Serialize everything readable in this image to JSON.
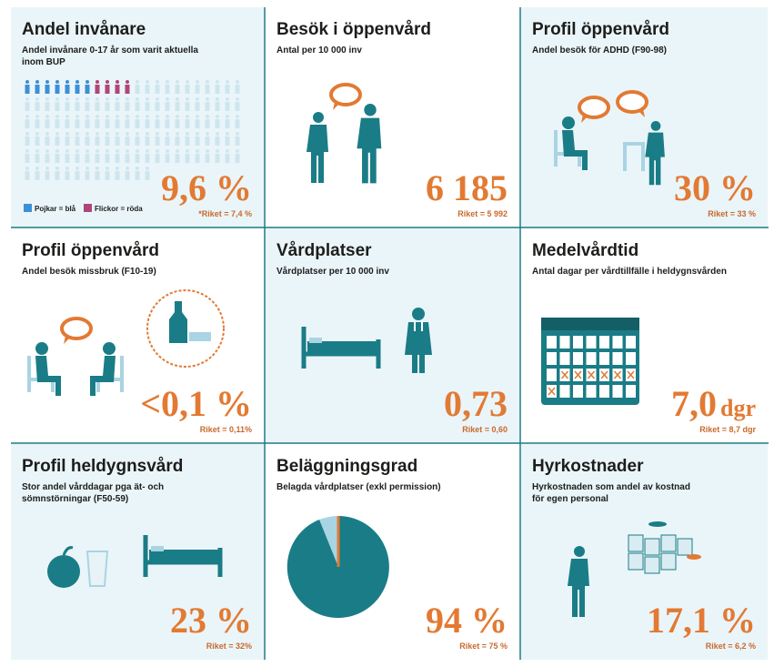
{
  "panels": [
    {
      "title": "Andel invånare",
      "subtitle": [
        "Andel invånare 0-17 år som varit aktuella",
        "inom BUP"
      ],
      "value": "9,6 %",
      "riket": "*Riket = 7,4 %",
      "legend": [
        "Pojkar = blå",
        "Flickor = röda"
      ]
    },
    {
      "title": "Besök i öppenvård",
      "subtitle": [
        "Antal per 10 000 inv"
      ],
      "value": "6 185",
      "riket": "Riket = 5 992"
    },
    {
      "title": "Profil öppenvård",
      "subtitle": [
        "Andel besök för ADHD (F90-98)"
      ],
      "value": "30 %",
      "riket": "Riket = 33 %"
    },
    {
      "title": "Profil öppenvård",
      "subtitle": [
        "Andel besök missbruk (F10-19)"
      ],
      "value": "<0,1 %",
      "riket": "Riket = 0,11%"
    },
    {
      "title": "Vårdplatser",
      "subtitle": [
        "Vårdplatser per 10 000 inv"
      ],
      "value": "0,73",
      "riket": "Riket = 0,60"
    },
    {
      "title": "Medelvårdtid",
      "subtitle": [
        "Antal dagar per vårdtillfälle i heldygnsvården"
      ],
      "value": "7,0",
      "unit": "dgr",
      "riket": "Riket = 8,7 dgr"
    },
    {
      "title": "Profil heldygnsvård",
      "subtitle": [
        "Stor andel vårddagar pga ät- och",
        "sömnstörningar (F50-59)"
      ],
      "value": "23 %",
      "riket": "Riket = 32%"
    },
    {
      "title": "Beläggningsgrad",
      "subtitle": [
        "Belagda vårdplatser (exkl permission)"
      ],
      "value": "94 %",
      "riket": "Riket = 75 %"
    },
    {
      "title": "Hyrkostnader",
      "subtitle": [
        "Hyrkostnaden som andel av kostnad",
        "för egen personal"
      ],
      "value": "17,1 %",
      "riket": "Riket = 6,2 %"
    }
  ]
}
